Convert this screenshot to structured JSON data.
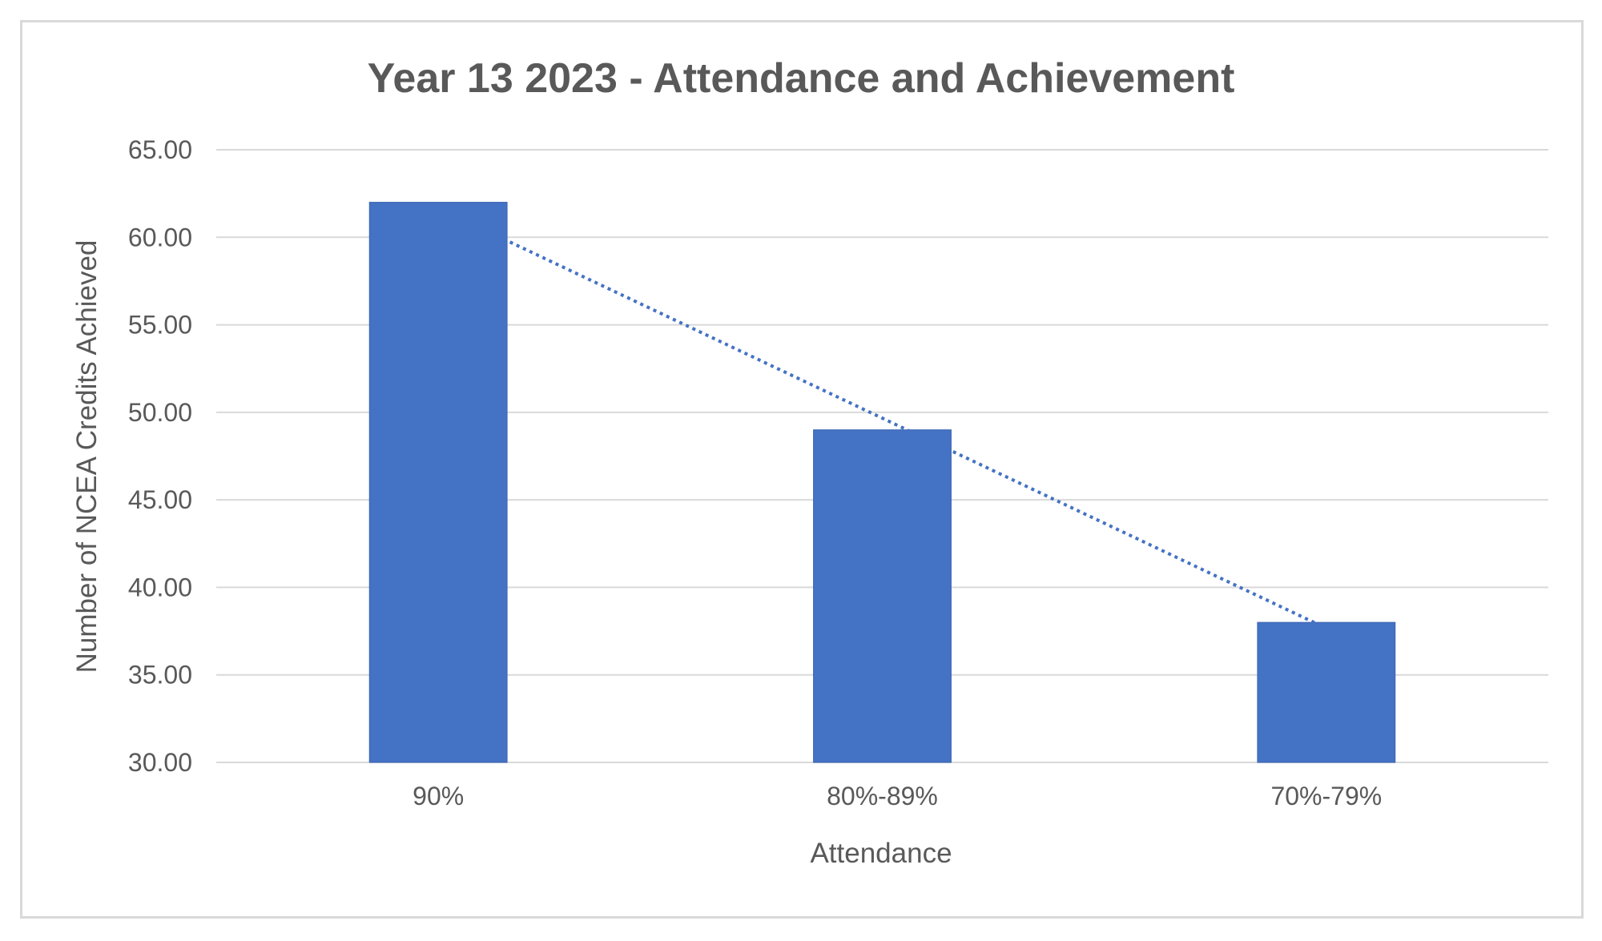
{
  "chart_data": {
    "type": "bar",
    "title": "Year 13 2023 - Attendance and Achievement",
    "xlabel": "Attendance",
    "ylabel": "Number of NCEA Credits Achieved",
    "categories": [
      "90%",
      "80%-89%",
      "70%-79%"
    ],
    "series": [
      {
        "values": [
          62,
          49,
          38
        ]
      }
    ],
    "ylim": [
      30,
      65
    ],
    "ytick_step": 5,
    "ytick_labels": [
      "30.00",
      "35.00",
      "40.00",
      "45.00",
      "50.00",
      "55.00",
      "60.00",
      "65.00"
    ],
    "trendline": {
      "type": "linear",
      "style": "dotted"
    },
    "grid": true,
    "legend": "none",
    "colors": {
      "bar": "#4472C4",
      "trendline": "#4472C4",
      "grid": "#d9d9d9",
      "text": "#595959"
    }
  }
}
